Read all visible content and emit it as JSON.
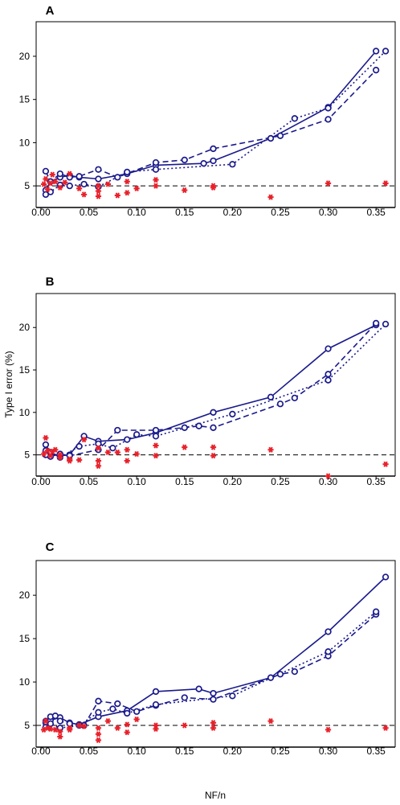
{
  "chart_data": {
    "type": "scatter",
    "xlabel": "NF/n",
    "ylabel": "Type I error (%)",
    "xlim": [
      -0.005,
      0.37
    ],
    "ylim": [
      2.5,
      24
    ],
    "xticks": [
      0.0,
      0.05,
      0.1,
      0.15,
      0.2,
      0.25,
      0.3,
      0.35
    ],
    "xtick_labels": [
      "0.00",
      "0.05",
      "0.10",
      "0.15",
      "0.20",
      "0.25",
      "0.30",
      "0.35"
    ],
    "yticks": [
      5,
      10,
      15,
      20
    ],
    "ytick_labels": [
      "5",
      "10",
      "15",
      "20"
    ],
    "reference_line": 5,
    "colors": {
      "blue": "#1a1a8c",
      "red": "#e8202a",
      "reference": "#000000"
    },
    "panels": [
      {
        "letter": "A",
        "series": [
          {
            "style": "solid",
            "color": "blue",
            "marker": "circle",
            "x": [
              0.005,
              0.01,
              0.02,
              0.03,
              0.04,
              0.06,
              0.09,
              0.12,
              0.17,
              0.18,
              0.24,
              0.3,
              0.35
            ],
            "y": [
              4.5,
              5.5,
              6.0,
              6.2,
              6.0,
              5.8,
              6.4,
              7.4,
              7.6,
              7.9,
              10.5,
              14.1,
              20.6
            ]
          },
          {
            "style": "dashed",
            "color": "blue",
            "marker": "circle",
            "x": [
              0.005,
              0.01,
              0.02,
              0.03,
              0.04,
              0.06,
              0.08,
              0.12,
              0.15,
              0.18,
              0.25,
              0.3,
              0.35
            ],
            "y": [
              6.7,
              5.5,
              6.4,
              6.0,
              6.1,
              6.9,
              6.0,
              7.7,
              8.0,
              9.3,
              10.8,
              12.7,
              18.4
            ]
          },
          {
            "style": "dotted",
            "color": "blue",
            "marker": "circle",
            "x": [
              0.005,
              0.01,
              0.02,
              0.03,
              0.045,
              0.06,
              0.09,
              0.12,
              0.2,
              0.265,
              0.3,
              0.36
            ],
            "y": [
              4.0,
              4.3,
              5.1,
              5.0,
              5.2,
              4.9,
              6.6,
              6.9,
              7.5,
              12.8,
              14.0,
              20.6
            ]
          },
          {
            "style": "none",
            "color": "red",
            "marker": "star",
            "x": [
              0.003,
              0.005,
              0.007,
              0.01,
              0.012,
              0.015,
              0.02,
              0.025,
              0.03,
              0.04,
              0.045,
              0.06,
              0.06,
              0.06,
              0.07,
              0.08,
              0.09,
              0.09,
              0.1,
              0.12,
              0.12,
              0.15,
              0.18,
              0.18,
              0.24,
              0.3,
              0.36
            ],
            "y": [
              5.2,
              5.8,
              4.6,
              5.3,
              6.3,
              5.5,
              4.8,
              5.4,
              6.4,
              4.7,
              4.0,
              3.8,
              4.4,
              5.0,
              5.2,
              3.9,
              4.2,
              5.5,
              4.7,
              5.0,
              5.7,
              4.5,
              4.8,
              5.0,
              3.7,
              5.3,
              5.3
            ]
          }
        ]
      },
      {
        "letter": "B",
        "series": [
          {
            "style": "solid",
            "color": "blue",
            "marker": "circle",
            "x": [
              0.005,
              0.01,
              0.02,
              0.03,
              0.045,
              0.06,
              0.09,
              0.12,
              0.18,
              0.24,
              0.3,
              0.35
            ],
            "y": [
              6.2,
              5.2,
              4.9,
              5.0,
              7.2,
              6.6,
              6.8,
              7.6,
              10.0,
              11.8,
              17.5,
              20.3
            ]
          },
          {
            "style": "dashed",
            "color": "blue",
            "marker": "circle",
            "x": [
              0.005,
              0.01,
              0.02,
              0.03,
              0.06,
              0.08,
              0.12,
              0.15,
              0.165,
              0.18,
              0.25,
              0.265,
              0.3,
              0.35
            ],
            "y": [
              5.5,
              4.8,
              5.1,
              4.9,
              5.6,
              7.9,
              7.9,
              8.2,
              8.4,
              8.2,
              11.0,
              11.7,
              14.5,
              20.5
            ]
          },
          {
            "style": "dotted",
            "color": "blue",
            "marker": "circle",
            "x": [
              0.005,
              0.01,
              0.02,
              0.04,
              0.06,
              0.075,
              0.1,
              0.12,
              0.2,
              0.3,
              0.36
            ],
            "y": [
              5.0,
              5.3,
              4.7,
              6.0,
              6.3,
              5.8,
              7.4,
              7.2,
              9.8,
              13.8,
              20.4
            ]
          },
          {
            "style": "none",
            "color": "red",
            "marker": "star",
            "x": [
              0.003,
              0.005,
              0.007,
              0.01,
              0.012,
              0.015,
              0.02,
              0.02,
              0.03,
              0.03,
              0.04,
              0.045,
              0.06,
              0.06,
              0.06,
              0.07,
              0.08,
              0.09,
              0.09,
              0.1,
              0.12,
              0.12,
              0.15,
              0.18,
              0.18,
              0.24,
              0.3,
              0.36
            ],
            "y": [
              5.1,
              7.0,
              5.5,
              4.9,
              5.4,
              5.6,
              4.7,
              5.0,
              4.5,
              4.3,
              4.4,
              6.8,
              3.7,
              4.3,
              5.8,
              5.3,
              5.3,
              4.3,
              5.6,
              5.1,
              4.9,
              6.1,
              5.9,
              4.9,
              5.9,
              5.6,
              2.5,
              3.9
            ]
          }
        ]
      },
      {
        "letter": "C",
        "series": [
          {
            "style": "solid",
            "color": "blue",
            "marker": "circle",
            "x": [
              0.005,
              0.01,
              0.02,
              0.03,
              0.04,
              0.06,
              0.09,
              0.12,
              0.165,
              0.18,
              0.24,
              0.3,
              0.36
            ],
            "y": [
              5.5,
              5.6,
              5.9,
              5.3,
              5.1,
              6.0,
              6.7,
              8.9,
              9.2,
              8.7,
              10.5,
              15.8,
              22.1
            ]
          },
          {
            "style": "dashed",
            "color": "blue",
            "marker": "circle",
            "x": [
              0.005,
              0.01,
              0.015,
              0.02,
              0.03,
              0.045,
              0.06,
              0.08,
              0.1,
              0.12,
              0.15,
              0.18,
              0.25,
              0.265,
              0.3,
              0.35
            ],
            "y": [
              5.3,
              6.0,
              6.1,
              5.5,
              5.2,
              5.0,
              7.8,
              7.5,
              6.6,
              7.3,
              8.2,
              8.0,
              10.9,
              11.2,
              13.0,
              17.8
            ]
          },
          {
            "style": "dotted",
            "color": "blue",
            "marker": "circle",
            "x": [
              0.005,
              0.01,
              0.02,
              0.04,
              0.06,
              0.075,
              0.09,
              0.12,
              0.2,
              0.3,
              0.35
            ],
            "y": [
              4.8,
              5.2,
              4.7,
              5.0,
              6.5,
              6.9,
              6.4,
              7.4,
              8.4,
              13.5,
              18.1
            ]
          },
          {
            "style": "none",
            "color": "red",
            "marker": "star",
            "x": [
              0.003,
              0.005,
              0.007,
              0.01,
              0.015,
              0.02,
              0.02,
              0.03,
              0.03,
              0.04,
              0.045,
              0.06,
              0.06,
              0.06,
              0.07,
              0.08,
              0.09,
              0.09,
              0.1,
              0.12,
              0.12,
              0.15,
              0.18,
              0.18,
              0.24,
              0.3,
              0.36
            ],
            "y": [
              4.5,
              5.5,
              4.7,
              4.6,
              4.5,
              3.7,
              4.3,
              4.5,
              4.7,
              5.0,
              4.9,
              3.3,
              4.0,
              4.7,
              5.5,
              4.7,
              4.2,
              5.1,
              5.7,
              4.6,
              5.0,
              5.0,
              4.7,
              5.3,
              5.5,
              4.5,
              4.7
            ]
          }
        ]
      }
    ]
  }
}
